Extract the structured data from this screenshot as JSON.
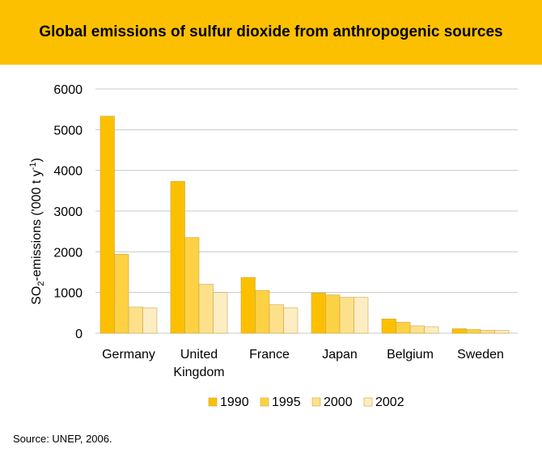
{
  "header": {
    "title": "Global emissions of sulfur dioxide from anthropogenic sources"
  },
  "source": "Source: UNEP, 2006.",
  "colors": {
    "header_bg": "#FDC000",
    "series": [
      "#FDC000",
      "#FDD144",
      "#FDE08A",
      "#FEEDC3"
    ],
    "bar_stroke": "#C9A640",
    "grid": "#C8C8C8"
  },
  "chart_data": {
    "type": "bar",
    "title": "Global emissions of sulfur dioxide from anthropogenic sources",
    "ylabel_main": "SO",
    "ylabel_sub": "2",
    "ylabel_mid": "-emissions ('000 t y",
    "ylabel_sup": "-1",
    "ylabel_end": ")",
    "xlabel": "",
    "ylim": [
      0,
      6000
    ],
    "yticks": [
      0,
      1000,
      2000,
      3000,
      4000,
      5000,
      6000
    ],
    "grid": true,
    "legend_position": "bottom",
    "categories": [
      [
        "Germany"
      ],
      [
        "United",
        "Kingdom"
      ],
      [
        "France"
      ],
      [
        "Japan"
      ],
      [
        "Belgium"
      ],
      [
        "Sweden"
      ]
    ],
    "series": [
      {
        "name": "1990",
        "values": [
          5330,
          3730,
          1370,
          990,
          350,
          110
        ]
      },
      {
        "name": "1995",
        "values": [
          1940,
          2350,
          1050,
          940,
          270,
          90
        ]
      },
      {
        "name": "2000",
        "values": [
          640,
          1200,
          700,
          880,
          180,
          70
        ]
      },
      {
        "name": "2002",
        "values": [
          620,
          1000,
          620,
          880,
          160,
          70
        ]
      }
    ]
  }
}
